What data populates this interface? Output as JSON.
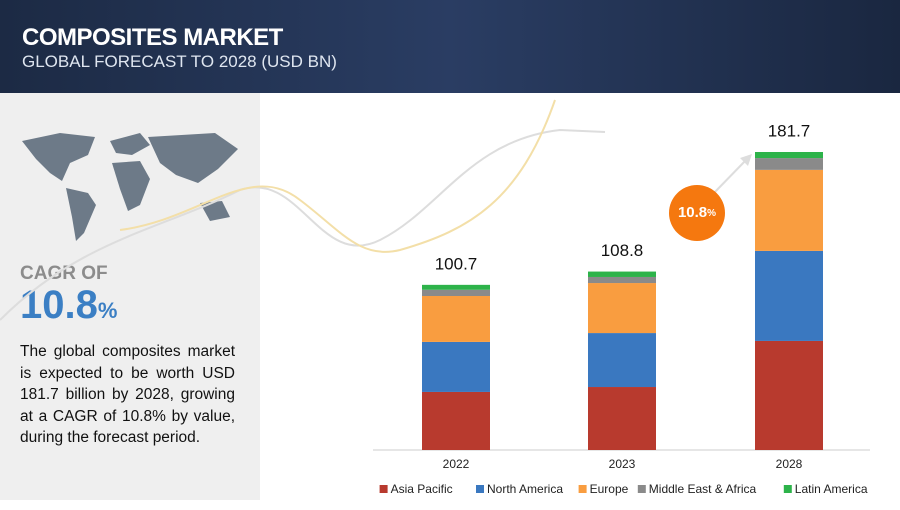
{
  "header": {
    "title": "COMPOSITES MARKET",
    "subtitle": "GLOBAL FORECAST TO 2028 (USD BN)"
  },
  "sidebar": {
    "cagr_label": "CAGR OF",
    "cagr_value": "10.8",
    "cagr_unit": "%",
    "description": "The global composites market is expected to be worth USD 181.7 billion by 2028, growing at a CAGR of 10.8% by value, during the forecast period."
  },
  "chart_data": {
    "type": "stacked-bar",
    "categories": [
      "2022",
      "2023",
      "2028"
    ],
    "totals": [
      100.7,
      108.8,
      181.7
    ],
    "series": [
      {
        "name": "Asia Pacific",
        "color": "#b83a2e",
        "values": [
          35.4,
          38.4,
          66.5
        ]
      },
      {
        "name": "North America",
        "color": "#3a78c0",
        "values": [
          30.5,
          32.9,
          54.9
        ]
      },
      {
        "name": "Europe",
        "color": "#f99d40",
        "values": [
          28.0,
          30.5,
          49.4
        ]
      },
      {
        "name": "Middle East & Africa",
        "color": "#8a8a8a",
        "values": [
          3.8,
          3.7,
          7.2
        ]
      },
      {
        "name": "Latin America",
        "color": "#2db34a",
        "values": [
          3.0,
          3.3,
          3.7
        ]
      }
    ]
  }
}
